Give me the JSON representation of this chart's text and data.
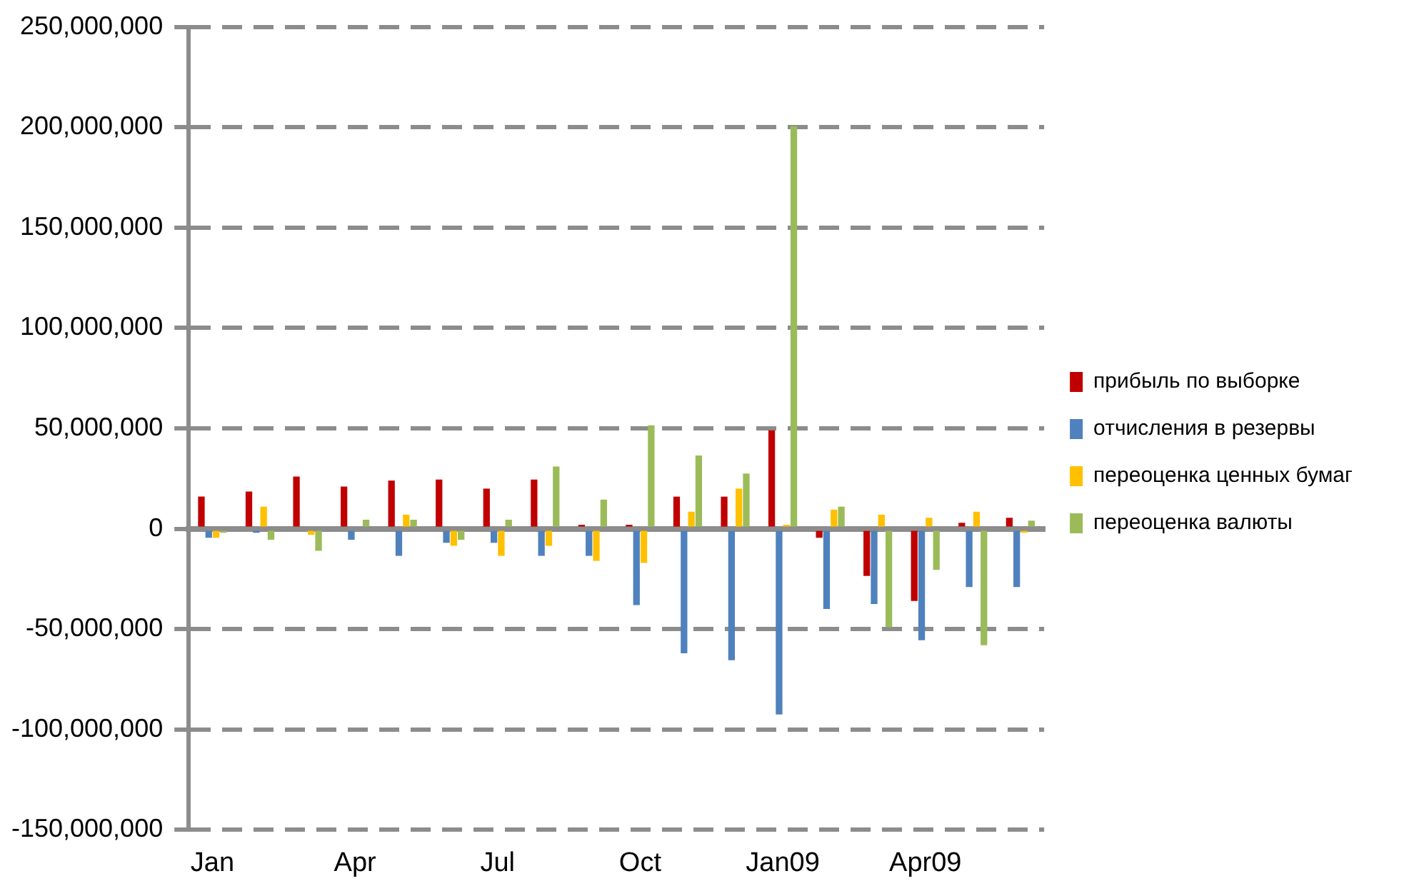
{
  "chart_data": {
    "type": "bar",
    "categories": [
      "Jan",
      null,
      null,
      "Apr",
      null,
      null,
      "Jul",
      null,
      null,
      "Oct",
      null,
      null,
      "Jan09",
      null,
      null,
      "Apr09",
      null,
      null
    ],
    "series": [
      {
        "name": "прибыль по выборке",
        "color": "#c00000",
        "values": [
          16000000,
          18500000,
          26000000,
          21000000,
          24000000,
          24500000,
          20000000,
          24500000,
          2000000,
          2000000,
          16000000,
          16000000,
          49000000,
          -4500000,
          -23500000,
          -36000000,
          3000000,
          5500000
        ]
      },
      {
        "name": "отчисления в резервы",
        "color": "#4f81bd",
        "values": [
          -4500000,
          -2000000,
          0,
          -5500000,
          -13500000,
          -7000000,
          -7000000,
          -13500000,
          -13500000,
          -38000000,
          -62000000,
          -65500000,
          -92500000,
          -40000000,
          -37500000,
          -55500000,
          -29000000,
          -29000000
        ]
      },
      {
        "name": "переоценка ценных бумаг",
        "color": "#ffc000",
        "values": [
          -4500000,
          11000000,
          -3000000,
          0,
          7000000,
          -8500000,
          -13500000,
          -8500000,
          -16000000,
          -17000000,
          8500000,
          20000000,
          2000000,
          9500000,
          7000000,
          5500000,
          8500000,
          -2000000
        ]
      },
      {
        "name": "переоценка валюты",
        "color": "#9bbb59",
        "values": [
          -2000000,
          -5500000,
          -11000000,
          4500000,
          4500000,
          -5500000,
          4500000,
          31000000,
          14500000,
          51500000,
          36500000,
          27500000,
          200500000,
          11000000,
          -49000000,
          -20500000,
          -58000000,
          4000000
        ]
      }
    ],
    "ylim": [
      -150000000,
      250000000
    ],
    "yticks": [
      {
        "value": -150000000,
        "label": "-150,000,000"
      },
      {
        "value": -100000000,
        "label": "-100,000,000"
      },
      {
        "value": -50000000,
        "label": "-50,000,000"
      },
      0,
      {
        "value": 50000000,
        "label": "50,000,000"
      },
      {
        "value": 100000000,
        "label": "100,000,000"
      },
      {
        "value": 150000000,
        "label": "150,000,000"
      },
      {
        "value": 200000000,
        "label": "200,000,000"
      },
      {
        "value": 250000000,
        "label": "250,000,000"
      }
    ],
    "grid": "y",
    "legend": "right"
  }
}
